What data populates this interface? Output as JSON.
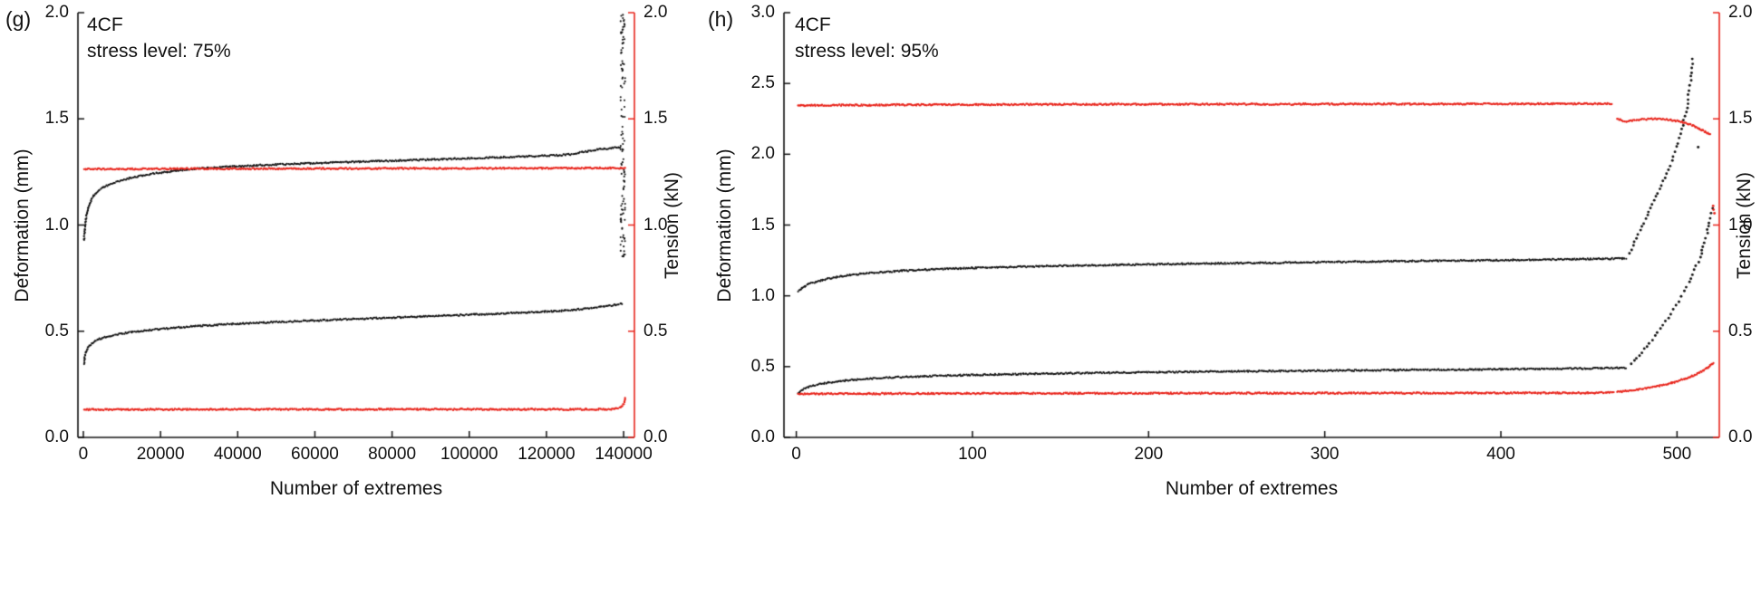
{
  "chart_data": [
    {
      "type": "scatter",
      "panel_label": "(g)",
      "annotation": [
        "4CF",
        "stress level: 75%"
      ],
      "x_axis": {
        "label": "Number of extremes",
        "min": -1400,
        "max": 142800,
        "tick_values": [
          0,
          20000,
          40000,
          60000,
          80000,
          100000,
          120000,
          140000
        ],
        "tick_labels": [
          "0",
          "20000",
          "40000",
          "60000",
          "80000",
          "100000",
          "120000",
          "140000"
        ]
      },
      "y_left": {
        "label": "Deformation (mm)",
        "min": 0,
        "max": 2,
        "tick_values": [
          0,
          0.5,
          1,
          1.5,
          2
        ],
        "tick_labels": [
          "0.0",
          "0.5",
          "1.0",
          "1.5",
          "2.0"
        ]
      },
      "y_right": {
        "label": "Tension (kN)",
        "min": 0,
        "max": 2,
        "color": "#e8251c",
        "tick_values": [
          0,
          0.5,
          1,
          1.5,
          2
        ],
        "tick_labels": [
          "0.0",
          "0.5",
          "1.0",
          "1.5",
          "2.0"
        ]
      },
      "series": [
        {
          "name": "deformation-upper",
          "axis": "left",
          "color": "#111111",
          "mode": "dense",
          "points": [
            [
              200,
              0.93
            ],
            [
              400,
              0.99
            ],
            [
              800,
              1.045
            ],
            [
              1500,
              1.095
            ],
            [
              2500,
              1.135
            ],
            [
              4000,
              1.165
            ],
            [
              6000,
              1.185
            ],
            [
              9000,
              1.205
            ],
            [
              13000,
              1.225
            ],
            [
              18000,
              1.242
            ],
            [
              24000,
              1.256
            ],
            [
              30000,
              1.266
            ],
            [
              38000,
              1.275
            ],
            [
              46000,
              1.282
            ],
            [
              55000,
              1.288
            ],
            [
              65000,
              1.294
            ],
            [
              75000,
              1.3
            ],
            [
              85000,
              1.305
            ],
            [
              95000,
              1.311
            ],
            [
              105000,
              1.317
            ],
            [
              115000,
              1.323
            ],
            [
              122000,
              1.328
            ],
            [
              126000,
              1.332
            ],
            [
              129000,
              1.342
            ],
            [
              132000,
              1.352
            ],
            [
              135000,
              1.359
            ],
            [
              139200,
              1.366
            ]
          ]
        },
        {
          "name": "deformation-lower",
          "axis": "left",
          "color": "#111111",
          "mode": "dense",
          "points": [
            [
              200,
              0.345
            ],
            [
              400,
              0.385
            ],
            [
              800,
              0.41
            ],
            [
              1500,
              0.432
            ],
            [
              2500,
              0.448
            ],
            [
              4000,
              0.462
            ],
            [
              6000,
              0.474
            ],
            [
              9000,
              0.486
            ],
            [
              13000,
              0.497
            ],
            [
              18000,
              0.507
            ],
            [
              24000,
              0.517
            ],
            [
              30000,
              0.525
            ],
            [
              38000,
              0.533
            ],
            [
              46000,
              0.54
            ],
            [
              55000,
              0.547
            ],
            [
              65000,
              0.554
            ],
            [
              75000,
              0.561
            ],
            [
              85000,
              0.567
            ],
            [
              95000,
              0.574
            ],
            [
              105000,
              0.581
            ],
            [
              115000,
              0.588
            ],
            [
              122000,
              0.594
            ],
            [
              127000,
              0.6
            ],
            [
              131000,
              0.609
            ],
            [
              134000,
              0.616
            ],
            [
              137000,
              0.622
            ],
            [
              139600,
              0.63
            ]
          ]
        },
        {
          "name": "failure-scatter-column",
          "axis": "left",
          "color": "#111111",
          "mode": "band",
          "band": {
            "x": [
              139200,
              140400
            ],
            "y": [
              0.84,
              2.0
            ],
            "n": 115
          }
        },
        {
          "name": "tension-upper",
          "axis": "right",
          "color": "#e8251c",
          "mode": "dense",
          "points": [
            [
              200,
              1.263
            ],
            [
              30000,
              1.265
            ],
            [
              70000,
              1.266
            ],
            [
              110000,
              1.267
            ],
            [
              140300,
              1.268
            ]
          ]
        },
        {
          "name": "tension-lower",
          "axis": "right",
          "color": "#e8251c",
          "mode": "dense",
          "points": [
            [
              200,
              0.131
            ],
            [
              40000,
              0.132
            ],
            [
              90000,
              0.132
            ],
            [
              132000,
              0.132
            ],
            [
              137500,
              0.133
            ],
            [
              139200,
              0.139
            ],
            [
              139900,
              0.155
            ],
            [
              140400,
              0.183
            ]
          ]
        }
      ]
    },
    {
      "type": "scatter",
      "panel_label": "(h)",
      "annotation": [
        "4CF",
        "stress level: 95%"
      ],
      "x_axis": {
        "label": "Number of extremes",
        "min": -7,
        "max": 524,
        "tick_values": [
          0,
          100,
          200,
          300,
          400,
          500
        ],
        "tick_labels": [
          "0",
          "100",
          "200",
          "300",
          "400",
          "500"
        ]
      },
      "y_left": {
        "label": "Deformation (mm)",
        "min": 0,
        "max": 3,
        "tick_values": [
          0,
          0.5,
          1,
          1.5,
          2,
          2.5,
          3
        ],
        "tick_labels": [
          "0.0",
          "0.5",
          "1.0",
          "1.5",
          "2.0",
          "2.5",
          "3.0"
        ]
      },
      "y_right": {
        "label": "Tension (kN)",
        "min": 0,
        "max": 2,
        "color": "#e8251c",
        "tick_values": [
          0,
          0.5,
          1,
          1.5,
          2
        ],
        "tick_labels": [
          "0.0",
          "0.5",
          "1.0",
          "1.5",
          "2.0"
        ]
      },
      "series": [
        {
          "name": "deformation-upper",
          "axis": "left",
          "color": "#111111",
          "mode": "dense",
          "points": [
            [
              1,
              1.03
            ],
            [
              4,
              1.062
            ],
            [
              8,
              1.087
            ],
            [
              14,
              1.11
            ],
            [
              22,
              1.131
            ],
            [
              32,
              1.149
            ],
            [
              45,
              1.164
            ],
            [
              60,
              1.177
            ],
            [
              80,
              1.188
            ],
            [
              100,
              1.197
            ],
            [
              130,
              1.206
            ],
            [
              160,
              1.214
            ],
            [
              200,
              1.222
            ],
            [
              240,
              1.229
            ],
            [
              280,
              1.235
            ],
            [
              320,
              1.241
            ],
            [
              360,
              1.247
            ],
            [
              400,
              1.252
            ],
            [
              430,
              1.257
            ],
            [
              455,
              1.261
            ],
            [
              471,
              1.264
            ]
          ]
        },
        {
          "name": "deformation-upper-failure",
          "axis": "left",
          "color": "#111111",
          "mode": "sparse",
          "points": [
            [
              473,
              1.3
            ],
            [
              476,
              1.38
            ],
            [
              479,
              1.46
            ],
            [
              482,
              1.54
            ],
            [
              485,
              1.62
            ],
            [
              488,
              1.7
            ],
            [
              491,
              1.78
            ],
            [
              494,
              1.86
            ],
            [
              497,
              1.95
            ],
            [
              500,
              2.05
            ],
            [
              502,
              2.14
            ],
            [
              504,
              2.24
            ],
            [
              506,
              2.36
            ],
            [
              507,
              2.45
            ],
            [
              508,
              2.55
            ],
            [
              509,
              2.67
            ]
          ]
        },
        {
          "name": "deformation-upper-stray",
          "axis": "left",
          "color": "#111111",
          "mode": "sparse",
          "points": [
            [
              512,
              2.05
            ]
          ]
        },
        {
          "name": "deformation-lower",
          "axis": "left",
          "color": "#111111",
          "mode": "dense",
          "points": [
            [
              1,
              0.312
            ],
            [
              4,
              0.34
            ],
            [
              8,
              0.361
            ],
            [
              14,
              0.379
            ],
            [
              22,
              0.394
            ],
            [
              32,
              0.406
            ],
            [
              45,
              0.417
            ],
            [
              60,
              0.426
            ],
            [
              80,
              0.435
            ],
            [
              100,
              0.441
            ],
            [
              130,
              0.448
            ],
            [
              160,
              0.454
            ],
            [
              200,
              0.46
            ],
            [
              240,
              0.465
            ],
            [
              280,
              0.469
            ],
            [
              320,
              0.473
            ],
            [
              360,
              0.477
            ],
            [
              400,
              0.481
            ],
            [
              430,
              0.485
            ],
            [
              455,
              0.488
            ],
            [
              471,
              0.491
            ]
          ]
        },
        {
          "name": "deformation-lower-failure",
          "axis": "left",
          "color": "#111111",
          "mode": "sparse",
          "points": [
            [
              474,
              0.52
            ],
            [
              477,
              0.56
            ],
            [
              480,
              0.6
            ],
            [
              483,
              0.645
            ],
            [
              486,
              0.69
            ],
            [
              489,
              0.74
            ],
            [
              492,
              0.79
            ],
            [
              495,
              0.845
            ],
            [
              498,
              0.9
            ],
            [
              501,
              0.96
            ],
            [
              504,
              1.03
            ],
            [
              507,
              1.1
            ],
            [
              510,
              1.18
            ],
            [
              513,
              1.27
            ],
            [
              515,
              1.35
            ],
            [
              517,
              1.44
            ],
            [
              518.5,
              1.52
            ],
            [
              519.5,
              1.58
            ],
            [
              520.5,
              1.62
            ]
          ]
        },
        {
          "name": "tension-upper",
          "axis": "right",
          "color": "#e8251c",
          "mode": "dense",
          "points": [
            [
              1,
              1.563
            ],
            [
              60,
              1.566
            ],
            [
              150,
              1.568
            ],
            [
              260,
              1.569
            ],
            [
              380,
              1.57
            ],
            [
              463,
              1.571
            ]
          ]
        },
        {
          "name": "tension-upper-after-peak",
          "axis": "right",
          "color": "#e8251c",
          "mode": "dense",
          "points": [
            [
              466,
              1.5
            ],
            [
              470,
              1.488
            ],
            [
              475,
              1.493
            ],
            [
              481,
              1.498
            ],
            [
              488,
              1.5
            ],
            [
              494,
              1.497
            ],
            [
              500,
              1.49
            ],
            [
              505,
              1.48
            ],
            [
              509,
              1.468
            ],
            [
              513,
              1.452
            ],
            [
              516,
              1.438
            ],
            [
              519,
              1.425
            ]
          ]
        },
        {
          "name": "tension-upper-stray",
          "axis": "right",
          "color": "#e8251c",
          "mode": "sparse",
          "points": [
            [
              520.5,
              1.09
            ],
            [
              521.5,
              1.055
            ]
          ]
        },
        {
          "name": "tension-lower",
          "axis": "right",
          "color": "#e8251c",
          "mode": "dense",
          "points": [
            [
              1,
              0.205
            ],
            [
              100,
              0.207
            ],
            [
              250,
              0.208
            ],
            [
              400,
              0.209
            ],
            [
              455,
              0.21
            ],
            [
              464,
              0.212
            ]
          ]
        },
        {
          "name": "tension-lower-rise",
          "axis": "right",
          "color": "#e8251c",
          "mode": "dense",
          "points": [
            [
              466,
              0.214
            ],
            [
              473,
              0.22
            ],
            [
              480,
              0.228
            ],
            [
              487,
              0.238
            ],
            [
              494,
              0.25
            ],
            [
              500,
              0.264
            ],
            [
              506,
              0.28
            ],
            [
              511,
              0.298
            ],
            [
              515,
              0.315
            ],
            [
              518,
              0.332
            ],
            [
              520.5,
              0.35
            ]
          ]
        }
      ]
    }
  ]
}
